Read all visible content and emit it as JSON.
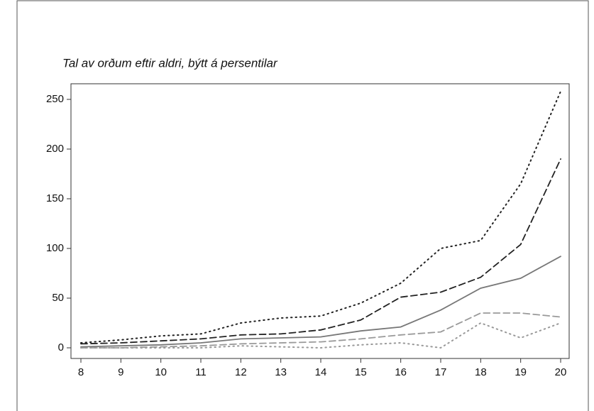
{
  "chart_data": {
    "type": "line",
    "title": "Tal av orðum eftir aldri, býtt á persentilar",
    "x": [
      8,
      9,
      10,
      11,
      12,
      13,
      14,
      15,
      16,
      17,
      18,
      19,
      20
    ],
    "xlim": [
      8,
      20
    ],
    "xticks": [
      8,
      9,
      10,
      11,
      12,
      13,
      14,
      15,
      16,
      17,
      18,
      19,
      20
    ],
    "ylim": [
      0,
      250
    ],
    "yticks": [
      0,
      50,
      100,
      150,
      200,
      250
    ],
    "series": [
      {
        "color": "#222222",
        "dash": "dotted",
        "values": [
          5,
          8,
          12,
          14,
          25,
          30,
          32,
          45,
          65,
          100,
          108,
          165,
          258
        ]
      },
      {
        "color": "#222222",
        "dash": "dashed",
        "values": [
          4,
          5,
          7,
          9,
          13,
          14,
          18,
          28,
          51,
          56,
          71,
          104,
          190
        ]
      },
      {
        "color": "#777777",
        "dash": "solid",
        "values": [
          1,
          2,
          3,
          5,
          9,
          10,
          11,
          17,
          21,
          38,
          60,
          70,
          92
        ]
      },
      {
        "color": "#999999",
        "dash": "dashed",
        "values": [
          0,
          0,
          1,
          2,
          4,
          5,
          6,
          9,
          13,
          16,
          35,
          35,
          31
        ]
      },
      {
        "color": "#999999",
        "dash": "dotted",
        "values": [
          0,
          0,
          0,
          0,
          2,
          1,
          0,
          3,
          5,
          0,
          25,
          10,
          25
        ]
      }
    ]
  }
}
